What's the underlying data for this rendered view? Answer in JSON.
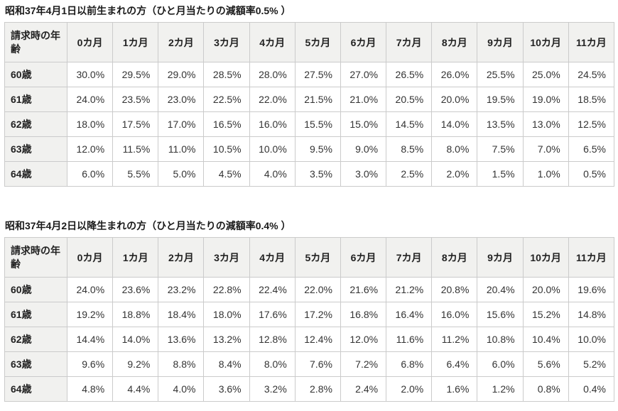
{
  "tables": [
    {
      "title": "昭和37年4月1日以前生まれの方（ひと月当たりの減額率0.5% ）",
      "corner_header": "請求時の年齢",
      "column_headers": [
        "0カ月",
        "1カ月",
        "2カ月",
        "3カ月",
        "4カ月",
        "5カ月",
        "6カ月",
        "7カ月",
        "8カ月",
        "9カ月",
        "10カ月",
        "11カ月"
      ],
      "rows": [
        {
          "label": "60歳",
          "values": [
            "30.0%",
            "29.5%",
            "29.0%",
            "28.5%",
            "28.0%",
            "27.5%",
            "27.0%",
            "26.5%",
            "26.0%",
            "25.5%",
            "25.0%",
            "24.5%"
          ]
        },
        {
          "label": "61歳",
          "values": [
            "24.0%",
            "23.5%",
            "23.0%",
            "22.5%",
            "22.0%",
            "21.5%",
            "21.0%",
            "20.5%",
            "20.0%",
            "19.5%",
            "19.0%",
            "18.5%"
          ]
        },
        {
          "label": "62歳",
          "values": [
            "18.0%",
            "17.5%",
            "17.0%",
            "16.5%",
            "16.0%",
            "15.5%",
            "15.0%",
            "14.5%",
            "14.0%",
            "13.5%",
            "13.0%",
            "12.5%"
          ]
        },
        {
          "label": "63歳",
          "values": [
            "12.0%",
            "11.5%",
            "11.0%",
            "10.5%",
            "10.0%",
            "9.5%",
            "9.0%",
            "8.5%",
            "8.0%",
            "7.5%",
            "7.0%",
            "6.5%"
          ]
        },
        {
          "label": "64歳",
          "values": [
            "6.0%",
            "5.5%",
            "5.0%",
            "4.5%",
            "4.0%",
            "3.5%",
            "3.0%",
            "2.5%",
            "2.0%",
            "1.5%",
            "1.0%",
            "0.5%"
          ]
        }
      ]
    },
    {
      "title": "昭和37年4月2日以降生まれの方（ひと月当たりの減額率0.4% ）",
      "corner_header": "請求時の年齢",
      "column_headers": [
        "0カ月",
        "1カ月",
        "2カ月",
        "3カ月",
        "4カ月",
        "5カ月",
        "6カ月",
        "7カ月",
        "8カ月",
        "9カ月",
        "10カ月",
        "11カ月"
      ],
      "rows": [
        {
          "label": "60歳",
          "values": [
            "24.0%",
            "23.6%",
            "23.2%",
            "22.8%",
            "22.4%",
            "22.0%",
            "21.6%",
            "21.2%",
            "20.8%",
            "20.4%",
            "20.0%",
            "19.6%"
          ]
        },
        {
          "label": "61歳",
          "values": [
            "19.2%",
            "18.8%",
            "18.4%",
            "18.0%",
            "17.6%",
            "17.2%",
            "16.8%",
            "16.4%",
            "16.0%",
            "15.6%",
            "15.2%",
            "14.8%"
          ]
        },
        {
          "label": "62歳",
          "values": [
            "14.4%",
            "14.0%",
            "13.6%",
            "13.2%",
            "12.8%",
            "12.4%",
            "12.0%",
            "11.6%",
            "11.2%",
            "10.8%",
            "10.4%",
            "10.0%"
          ]
        },
        {
          "label": "63歳",
          "values": [
            "9.6%",
            "9.2%",
            "8.8%",
            "8.4%",
            "8.0%",
            "7.6%",
            "7.2%",
            "6.8%",
            "6.4%",
            "6.0%",
            "5.6%",
            "5.2%"
          ]
        },
        {
          "label": "64歳",
          "values": [
            "4.8%",
            "4.4%",
            "4.0%",
            "3.6%",
            "3.2%",
            "2.8%",
            "2.4%",
            "2.0%",
            "1.6%",
            "1.2%",
            "0.8%",
            "0.4%"
          ]
        }
      ]
    }
  ]
}
